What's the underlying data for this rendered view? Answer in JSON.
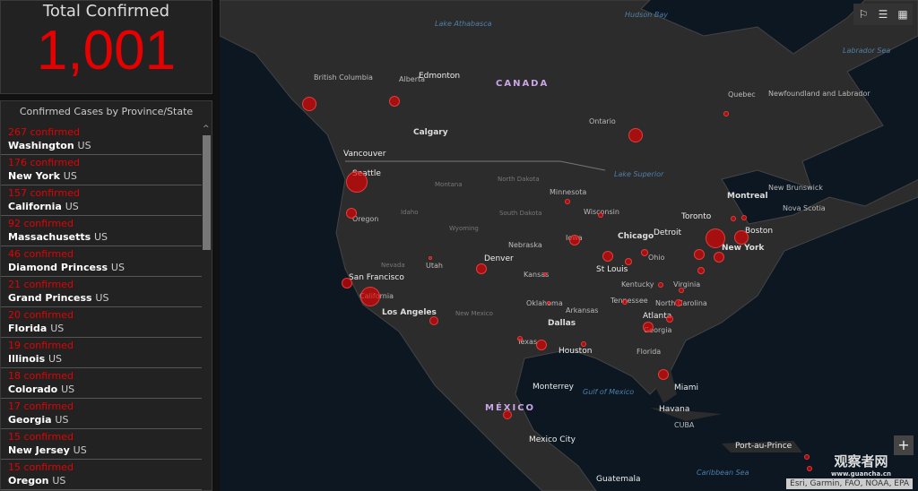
{
  "total": {
    "title": "Total Confirmed",
    "value": "1,001"
  },
  "list": {
    "title": "Confirmed Cases by Province/State",
    "items": [
      {
        "count": "267 confirmed",
        "place": "Washington",
        "country": "US"
      },
      {
        "count": "176 confirmed",
        "place": "New York",
        "country": "US"
      },
      {
        "count": "157 confirmed",
        "place": "California",
        "country": "US"
      },
      {
        "count": "92 confirmed",
        "place": "Massachusetts",
        "country": "US"
      },
      {
        "count": "46 confirmed",
        "place": "Diamond Princess",
        "country": "US"
      },
      {
        "count": "21 confirmed",
        "place": "Grand Princess",
        "country": "US"
      },
      {
        "count": "20 confirmed",
        "place": "Florida",
        "country": "US"
      },
      {
        "count": "19 confirmed",
        "place": "Illinois",
        "country": "US"
      },
      {
        "count": "18 confirmed",
        "place": "Colorado",
        "country": "US"
      },
      {
        "count": "17 confirmed",
        "place": "Georgia",
        "country": "US"
      },
      {
        "count": "15 confirmed",
        "place": "New Jersey",
        "country": "US"
      },
      {
        "count": "15 confirmed",
        "place": "Oregon",
        "country": "US"
      }
    ]
  },
  "map": {
    "labels": [
      "Lake Athabasca",
      "Hudson Bay",
      "Labrador Sea",
      "British Columbia",
      "Alberta",
      "Edmonton",
      "CANADA",
      "Quebec",
      "Newfoundland and Labrador",
      "Ontario",
      "Calgary",
      "Vancouver",
      "Seattle",
      "North Dakota",
      "Montana",
      "Lake Superior",
      "Montreal",
      "New Brunswick",
      "Nova Scotia",
      "Minnesota",
      "Idaho",
      "Oregon",
      "South Dakota",
      "Wisconsin",
      "Toronto",
      "Wyoming",
      "Detroit",
      "Chicago",
      "Boston",
      "New York",
      "Iowa",
      "Nebraska",
      "Nevada",
      "Utah",
      "Denver",
      "Ohio",
      "St Louis",
      "Kansas",
      "San Francisco",
      "California",
      "Kentucky",
      "Virginia",
      "Tennessee",
      "North Carolina",
      "Oklahoma",
      "Arkansas",
      "Los Angeles",
      "New Mexico",
      "Atlanta",
      "Georgia",
      "Dallas",
      "Texas",
      "Houston",
      "Florida",
      "Gulf of Mexico",
      "Monterrey",
      "Miami",
      "MÉXICO",
      "Havana",
      "CUBA",
      "Mexico City",
      "Port-au-Prince",
      "Caribbean Sea",
      "Guatemala"
    ],
    "bubble_color": "#e60000"
  },
  "tools": {
    "bookmark": "bookmark-icon",
    "list": "list-icon",
    "basemap": "grid-icon",
    "zoom_in": "+"
  },
  "attribution": "Esri, Garmin, FAO, NOAA, EPA",
  "watermark": {
    "text": "观察者网",
    "url": "www.guancha.cn"
  }
}
